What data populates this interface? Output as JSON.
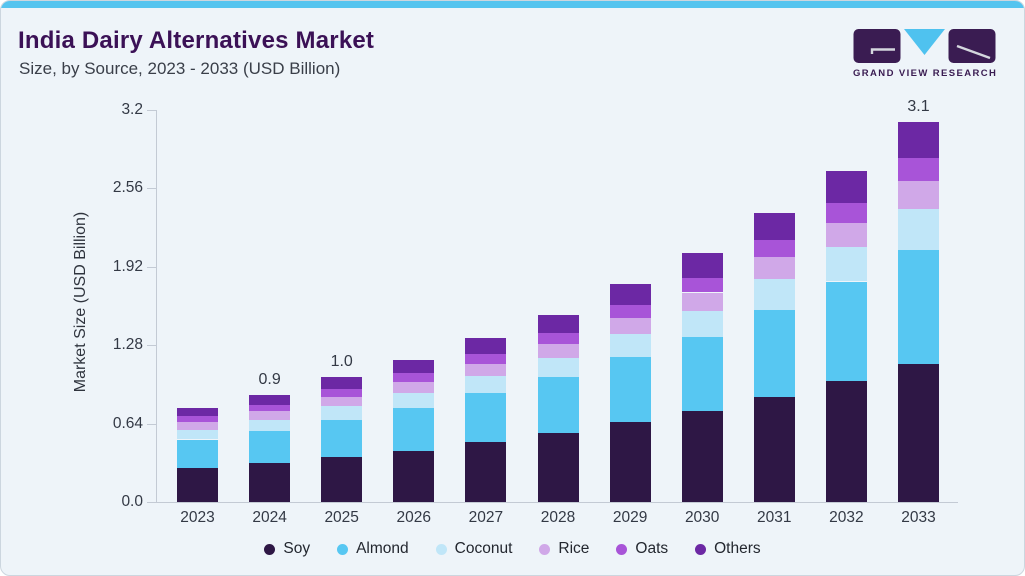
{
  "header": {
    "title": "India Dairy Alternatives Market",
    "subtitle": "Size, by Source, 2023 - 2033 (USD Billion)",
    "logo_text": "GRAND VIEW RESEARCH"
  },
  "theme": {
    "accent_bar_color": "#55c4ef",
    "card_background": "#eef4f9",
    "title_color": "#3b1156",
    "axis_line_color": "#c3cad4",
    "logo_purple": "#3a1c52",
    "logo_cyan": "#4fc2ef"
  },
  "chart_data": {
    "type": "bar",
    "stacked": true,
    "title": "India Dairy Alternatives Market Size, by Source, 2023 - 2033 (USD Billion)",
    "xlabel": "",
    "ylabel": "Market Size (USD Billion)",
    "categories": [
      "2023",
      "2024",
      "2025",
      "2026",
      "2027",
      "2028",
      "2029",
      "2030",
      "2031",
      "2032",
      "2033"
    ],
    "series": [
      {
        "name": "Soy",
        "color": "#2e1745",
        "values": [
          0.28,
          0.32,
          0.37,
          0.42,
          0.49,
          0.56,
          0.65,
          0.74,
          0.86,
          0.99,
          1.13
        ]
      },
      {
        "name": "Almond",
        "color": "#57c7f2",
        "values": [
          0.23,
          0.26,
          0.3,
          0.35,
          0.4,
          0.46,
          0.53,
          0.61,
          0.71,
          0.81,
          0.93
        ]
      },
      {
        "name": "Coconut",
        "color": "#c0e6f8",
        "values": [
          0.08,
          0.09,
          0.11,
          0.12,
          0.14,
          0.16,
          0.19,
          0.21,
          0.25,
          0.28,
          0.33
        ]
      },
      {
        "name": "Rice",
        "color": "#d0a8e8",
        "values": [
          0.06,
          0.07,
          0.08,
          0.09,
          0.1,
          0.11,
          0.13,
          0.15,
          0.18,
          0.2,
          0.23
        ]
      },
      {
        "name": "Oats",
        "color": "#a854d8",
        "values": [
          0.05,
          0.05,
          0.06,
          0.07,
          0.08,
          0.09,
          0.11,
          0.12,
          0.14,
          0.16,
          0.19
        ]
      },
      {
        "name": "Others",
        "color": "#6c28a4",
        "values": [
          0.07,
          0.08,
          0.1,
          0.11,
          0.13,
          0.15,
          0.17,
          0.2,
          0.22,
          0.26,
          0.29
        ]
      }
    ],
    "totals": [
      0.77,
      0.87,
      1.02,
      1.16,
      1.34,
      1.53,
      1.78,
      2.03,
      2.36,
      2.7,
      3.1
    ],
    "bar_labels": {
      "2024": "0.9",
      "2025": "1.0",
      "2033": "3.1"
    },
    "yticks": [
      0,
      0.64,
      1.28,
      1.92,
      2.56,
      3.2
    ],
    "ytick_labels": [
      "0.0",
      "0.64",
      "1.28",
      "1.92",
      "2.56",
      "3.2"
    ],
    "ylim": [
      0,
      3.2
    ],
    "grid": false,
    "legend_position": "bottom"
  }
}
